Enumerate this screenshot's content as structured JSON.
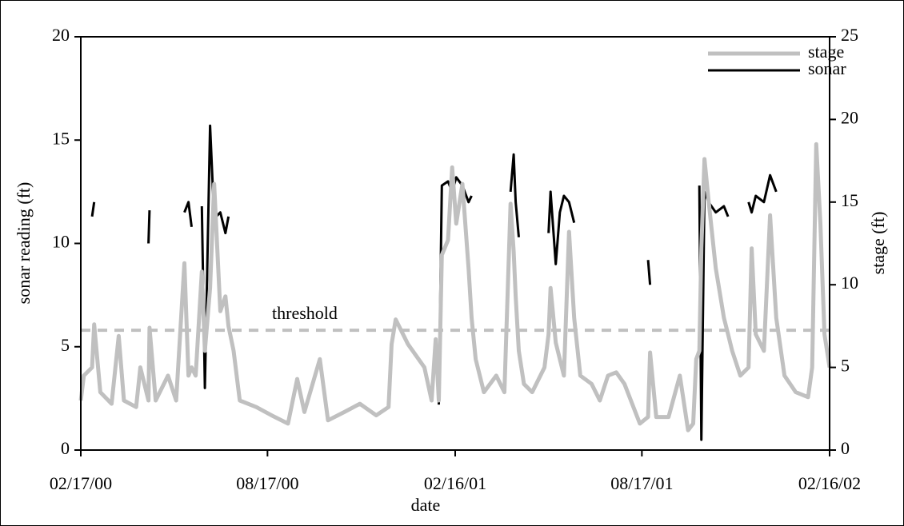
{
  "chart_data": {
    "type": "line",
    "x_label": "date",
    "y_label": "sonar reading (ft)",
    "y2_label": "stage (ft)",
    "legend": "upper right",
    "xlim": [
      "2000-02-17",
      "2002-02-16"
    ],
    "xticks": [
      {
        "value": "2000-02-17",
        "label": "02/17/00"
      },
      {
        "value": "2000-08-17",
        "label": "08/17/00"
      },
      {
        "value": "2001-02-16",
        "label": "02/16/01"
      },
      {
        "value": "2001-08-17",
        "label": "08/17/01"
      },
      {
        "value": "2002-02-16",
        "label": "02/16/02"
      }
    ],
    "ylim": [
      0,
      20
    ],
    "yticks": [
      0,
      5,
      10,
      15,
      20
    ],
    "y2lim": [
      0,
      25
    ],
    "y2ticks": [
      0,
      5,
      10,
      15,
      20,
      25
    ],
    "threshold": {
      "label": "threshold",
      "value": 5.8,
      "color": "#c0c0c0"
    },
    "x": [
      "2000-02-17",
      "2000-02-20",
      "2000-02-28",
      "2000-03-01",
      "2000-03-07",
      "2000-03-18",
      "2000-03-25",
      "2000-03-30",
      "2000-04-11",
      "2000-04-15",
      "2000-04-23",
      "2000-04-24",
      "2000-04-30",
      "2000-05-12",
      "2000-05-20",
      "2000-05-28",
      "2000-06-01",
      "2000-06-04",
      "2000-06-08",
      "2000-06-14",
      "2000-06-17",
      "2000-06-22",
      "2000-06-26",
      "2000-07-02",
      "2000-07-07",
      "2000-07-10",
      "2000-07-15",
      "2000-07-21",
      "2000-08-06",
      "2000-08-21",
      "2000-09-06",
      "2000-09-15",
      "2000-09-22",
      "2000-10-07",
      "2000-10-15",
      "2000-10-31",
      "2000-11-15",
      "2000-12-01",
      "2000-12-13",
      "2000-12-16",
      "2000-12-20",
      "2001-01-01",
      "2001-01-17",
      "2001-01-24",
      "2001-01-28",
      "2001-01-31",
      "2001-02-03",
      "2001-02-09",
      "2001-02-13",
      "2001-02-17",
      "2001-02-23",
      "2001-03-01",
      "2001-03-04",
      "2001-03-08",
      "2001-03-16",
      "2001-03-28",
      "2001-04-05",
      "2001-04-11",
      "2001-04-14",
      "2001-04-16",
      "2001-04-19",
      "2001-04-24",
      "2001-05-02",
      "2001-05-14",
      "2001-05-18",
      "2001-05-20",
      "2001-05-25",
      "2001-05-29",
      "2001-06-02",
      "2001-06-07",
      "2001-06-12",
      "2001-06-18",
      "2001-06-29",
      "2001-07-07",
      "2001-07-15",
      "2001-07-23",
      "2001-07-31",
      "2001-08-15",
      "2001-08-23",
      "2001-08-25",
      "2001-08-31",
      "2001-09-12",
      "2001-09-23",
      "2001-10-01",
      "2001-10-06",
      "2001-10-09",
      "2001-10-12",
      "2001-10-14",
      "2001-10-17",
      "2001-10-21",
      "2001-10-28",
      "2001-11-05",
      "2001-11-09",
      "2001-11-13",
      "2001-11-21",
      "2001-11-29",
      "2001-12-02",
      "2001-12-06",
      "2001-12-14",
      "2001-12-20",
      "2001-12-26",
      "2002-01-03",
      "2002-01-14",
      "2002-01-26",
      "2002-01-30",
      "2002-02-03",
      "2002-02-07",
      "2002-02-11",
      "2002-02-16"
    ],
    "series": [
      {
        "name": "stage",
        "color": "#c0c0c0",
        "width": 5,
        "axis": "y2",
        "values": [
          3.0,
          4.5,
          5.0,
          7.6,
          3.5,
          2.8,
          6.9,
          3.0,
          2.6,
          5.0,
          3.0,
          7.4,
          3.0,
          4.5,
          3.0,
          11.3,
          4.5,
          5.0,
          4.5,
          10.8,
          6.0,
          9.8,
          16.1,
          8.4,
          9.3,
          7.5,
          6.0,
          3.0,
          2.6,
          2.1,
          1.6,
          4.3,
          2.3,
          5.5,
          1.8,
          2.3,
          2.8,
          2.1,
          2.6,
          6.4,
          7.9,
          6.4,
          5.0,
          3.0,
          6.7,
          3.0,
          11.8,
          12.7,
          17.1,
          13.7,
          16.1,
          11.0,
          8.0,
          5.5,
          3.5,
          4.5,
          3.5,
          14.9,
          12.0,
          9.3,
          6.0,
          4.0,
          3.5,
          5.0,
          7.0,
          9.8,
          6.5,
          5.5,
          4.5,
          13.2,
          8.0,
          4.5,
          4.0,
          3.0,
          4.5,
          4.7,
          4.0,
          1.6,
          2.0,
          5.9,
          2.0,
          2.0,
          4.5,
          1.2,
          1.6,
          5.5,
          6.0,
          12.2,
          17.6,
          15.1,
          11.0,
          8.0,
          7.0,
          6.0,
          4.5,
          5.0,
          12.2,
          7.0,
          6.0,
          14.2,
          8.0,
          4.5,
          3.5,
          3.2,
          5.0,
          18.5,
          13.7,
          7.0,
          5.0
        ]
      },
      {
        "name": "sonar",
        "color": "#000000",
        "width": 3,
        "values": [
          null,
          null,
          11.3,
          12.0,
          null,
          null,
          null,
          null,
          null,
          null,
          10.0,
          11.6,
          null,
          null,
          null,
          11.5,
          12.0,
          10.8,
          null,
          11.8,
          3.0,
          15.7,
          11.2,
          11.5,
          10.5,
          11.3,
          null,
          null,
          null,
          null,
          null,
          null,
          null,
          null,
          null,
          null,
          null,
          null,
          null,
          null,
          null,
          null,
          null,
          null,
          null,
          2.2,
          12.8,
          13.0,
          12.5,
          13.2,
          12.8,
          12.0,
          12.3,
          null,
          null,
          null,
          null,
          12.5,
          14.3,
          12.0,
          10.3,
          null,
          null,
          null,
          10.5,
          12.5,
          9.0,
          11.5,
          12.3,
          12.0,
          11.0,
          null,
          null,
          null,
          null,
          null,
          null,
          null,
          9.2,
          8.0,
          null,
          null,
          null,
          null,
          null,
          null,
          12.8,
          0.5,
          12.5,
          12.0,
          11.5,
          11.8,
          11.3,
          null,
          null,
          12.0,
          11.5,
          12.3,
          12.0,
          13.3,
          12.5,
          null,
          null,
          null,
          null,
          null,
          null,
          null,
          null
        ]
      }
    ]
  }
}
